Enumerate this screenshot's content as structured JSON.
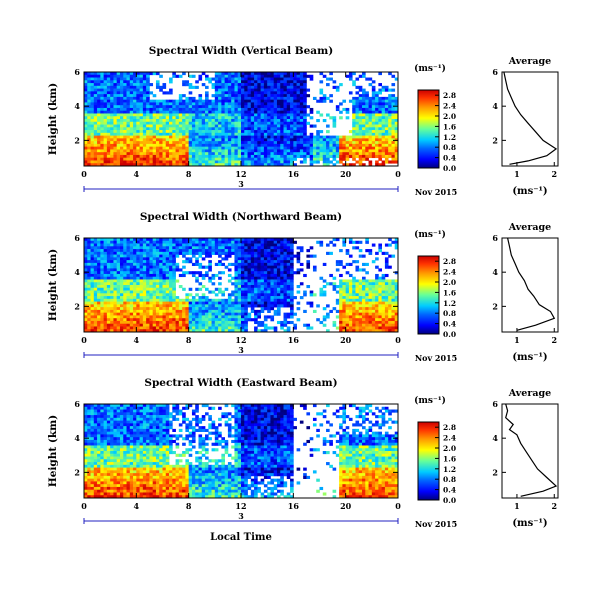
{
  "chart_data": [
    {
      "type": "heatmap",
      "title": "Spectral Width (Vertical Beam)",
      "ylabel": "Height (km)",
      "x_ticks": [
        "0",
        "4",
        "8",
        "12",
        "16",
        "20",
        "0"
      ],
      "x_range_hours": [
        0,
        24
      ],
      "date_marker": "3",
      "date_label": "Nov 2015",
      "y_ticks": [
        "2",
        "4",
        "6"
      ],
      "y_range_km": [
        0.5,
        6.0
      ],
      "colorbar": {
        "unit": "(ms⁻¹)",
        "ticks": [
          "0.0",
          "0.4",
          "0.8",
          "1.2",
          "1.6",
          "2.0",
          "2.4",
          "2.8"
        ],
        "range": [
          0.0,
          3.0
        ]
      },
      "average_profile": {
        "title": "Average",
        "xlabel": "(ms⁻¹)",
        "x_ticks": [
          "1",
          "2"
        ],
        "x_range": [
          0.6,
          2.1
        ],
        "y_ticks": [
          "2",
          "4",
          "6"
        ],
        "points": [
          [
            0.8,
            0.6
          ],
          [
            1.3,
            0.8
          ],
          [
            1.8,
            1.1
          ],
          [
            2.05,
            1.5
          ],
          [
            1.7,
            2.0
          ],
          [
            1.5,
            2.5
          ],
          [
            1.3,
            3.0
          ],
          [
            1.1,
            3.5
          ],
          [
            0.95,
            4.0
          ],
          [
            0.85,
            4.5
          ],
          [
            0.75,
            5.0
          ],
          [
            0.7,
            5.5
          ],
          [
            0.65,
            6.0
          ]
        ]
      }
    },
    {
      "type": "heatmap",
      "title": "Spectral Width (Northward Beam)",
      "ylabel": "Height (km)",
      "x_ticks": [
        "0",
        "4",
        "8",
        "12",
        "16",
        "20",
        "0"
      ],
      "x_range_hours": [
        0,
        24
      ],
      "date_marker": "3",
      "date_label": "Nov 2015",
      "y_ticks": [
        "2",
        "4",
        "6"
      ],
      "y_range_km": [
        0.5,
        6.0
      ],
      "colorbar": {
        "unit": "(ms⁻¹)",
        "ticks": [
          "0.0",
          "0.4",
          "0.8",
          "1.2",
          "1.6",
          "2.0",
          "2.4",
          "2.8"
        ],
        "range": [
          0.0,
          3.0
        ]
      },
      "average_profile": {
        "title": "Average",
        "xlabel": "(ms⁻¹)",
        "x_ticks": [
          "1",
          "2"
        ],
        "x_range": [
          0.6,
          2.1
        ],
        "y_ticks": [
          "2",
          "4",
          "6"
        ],
        "points": [
          [
            1.0,
            0.6
          ],
          [
            1.5,
            0.9
          ],
          [
            2.0,
            1.3
          ],
          [
            1.9,
            1.7
          ],
          [
            1.6,
            2.1
          ],
          [
            1.45,
            2.6
          ],
          [
            1.3,
            3.0
          ],
          [
            1.2,
            3.5
          ],
          [
            1.05,
            4.0
          ],
          [
            0.95,
            4.5
          ],
          [
            0.85,
            5.0
          ],
          [
            0.8,
            5.5
          ],
          [
            0.75,
            6.0
          ]
        ]
      }
    },
    {
      "type": "heatmap",
      "title": "Spectral Width (Eastward Beam)",
      "ylabel": "Height (km)",
      "x_ticks": [
        "0",
        "4",
        "8",
        "12",
        "16",
        "20",
        "0"
      ],
      "x_range_hours": [
        0,
        24
      ],
      "date_marker": "3",
      "date_label": "Nov 2015",
      "xlabel": "Local Time",
      "y_ticks": [
        "2",
        "4",
        "6"
      ],
      "y_range_km": [
        0.5,
        6.0
      ],
      "colorbar": {
        "unit": "(ms⁻¹)",
        "ticks": [
          "0.0",
          "0.4",
          "0.8",
          "1.2",
          "1.6",
          "2.0",
          "2.4",
          "2.8"
        ],
        "range": [
          0.0,
          3.0
        ]
      },
      "average_profile": {
        "title": "Average",
        "xlabel": "(ms⁻¹)",
        "x_ticks": [
          "1",
          "2"
        ],
        "x_range": [
          0.6,
          2.1
        ],
        "y_ticks": [
          "2",
          "4",
          "6"
        ],
        "points": [
          [
            1.1,
            0.6
          ],
          [
            1.7,
            0.9
          ],
          [
            2.05,
            1.2
          ],
          [
            1.8,
            1.7
          ],
          [
            1.55,
            2.2
          ],
          [
            1.4,
            2.7
          ],
          [
            1.25,
            3.2
          ],
          [
            1.1,
            3.7
          ],
          [
            1.0,
            4.2
          ],
          [
            0.8,
            4.5
          ],
          [
            0.9,
            4.8
          ],
          [
            0.7,
            5.2
          ],
          [
            0.75,
            5.6
          ],
          [
            0.7,
            6.0
          ]
        ]
      }
    }
  ]
}
